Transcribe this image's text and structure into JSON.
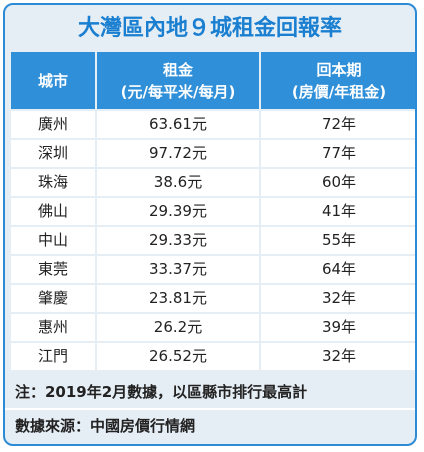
{
  "title": "大灣區內地９城租金回報率",
  "table": {
    "header": [
      {
        "label": "城市"
      },
      {
        "label": "租金",
        "sub": "(元/每平米/每月)"
      },
      {
        "label": "回本期",
        "sub": "(房價/年租金)"
      }
    ],
    "rows": [
      [
        "廣州",
        "63.61元",
        "72年"
      ],
      [
        "深圳",
        "97.72元",
        "77年"
      ],
      [
        "珠海",
        "38.6元",
        "60年"
      ],
      [
        "佛山",
        "29.39元",
        "41年"
      ],
      [
        "中山",
        "29.33元",
        "55年"
      ],
      [
        "東莞",
        "33.37元",
        "64年"
      ],
      [
        "肇慶",
        "23.81元",
        "32年"
      ],
      [
        "惠州",
        "26.2元",
        "39年"
      ],
      [
        "江門",
        "26.52元",
        "32年"
      ]
    ]
  },
  "notes": [
    "注：2019年2月數據，以區縣市排行最高計",
    "數據來源：中國房價行情網"
  ]
}
